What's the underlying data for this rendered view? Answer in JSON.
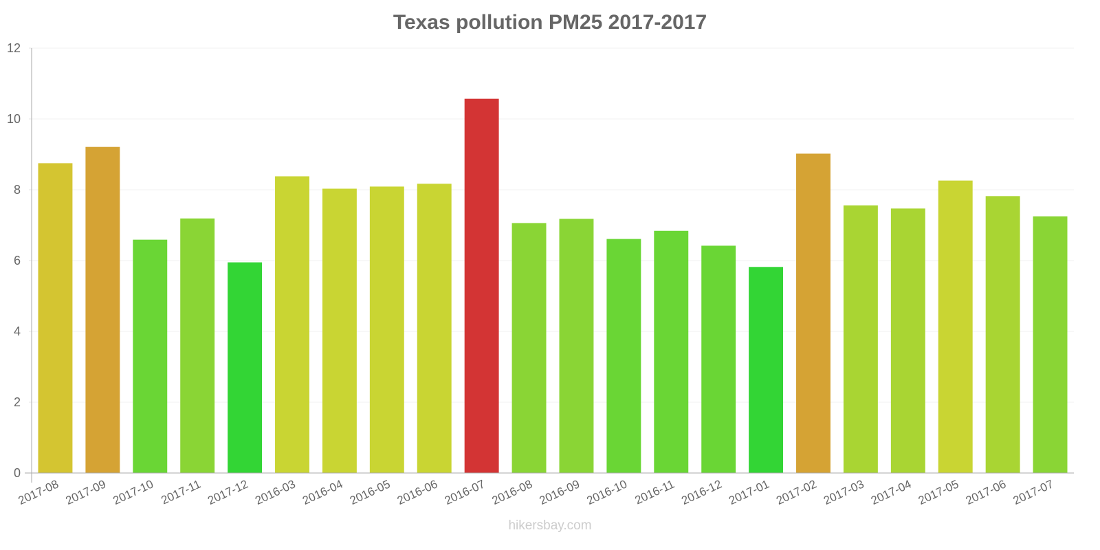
{
  "title": "Texas pollution PM25 2017-2017",
  "watermark": "hikersbay.com",
  "chart_data": {
    "type": "bar",
    "title": "Texas pollution PM25 2017-2017",
    "xlabel": "",
    "ylabel": "",
    "ylim": [
      0,
      12
    ],
    "yticks": [
      0,
      2,
      4,
      6,
      8,
      10,
      12
    ],
    "grid": true,
    "legend": null,
    "categories": [
      "2017-08",
      "2017-09",
      "2017-10",
      "2017-11",
      "2017-12",
      "2016-03",
      "2016-04",
      "2016-05",
      "2016-06",
      "2016-07",
      "2016-08",
      "2016-09",
      "2016-10",
      "2016-11",
      "2016-12",
      "2017-01",
      "2017-02",
      "2017-03",
      "2017-04",
      "2017-05",
      "2017-06",
      "2017-07"
    ],
    "values": [
      8.74,
      9.2,
      6.58,
      7.18,
      5.94,
      8.37,
      8.02,
      8.08,
      8.16,
      10.56,
      7.05,
      7.17,
      6.6,
      6.83,
      6.41,
      5.81,
      9.01,
      7.55,
      7.46,
      8.25,
      7.81,
      7.24
    ],
    "colors": [
      "#dbcb33",
      "#dca836",
      "#6ddd37",
      "#8edc37",
      "#35dc37",
      "#cfdc35",
      "#cfdc35",
      "#cfdc35",
      "#cfdc35",
      "#da3636",
      "#8edc37",
      "#8edc37",
      "#6ddd37",
      "#6ddd37",
      "#6ddd37",
      "#35dc37",
      "#dca836",
      "#aedc35",
      "#aedc35",
      "#cfdc35",
      "#aedc35",
      "#8edc37"
    ]
  }
}
